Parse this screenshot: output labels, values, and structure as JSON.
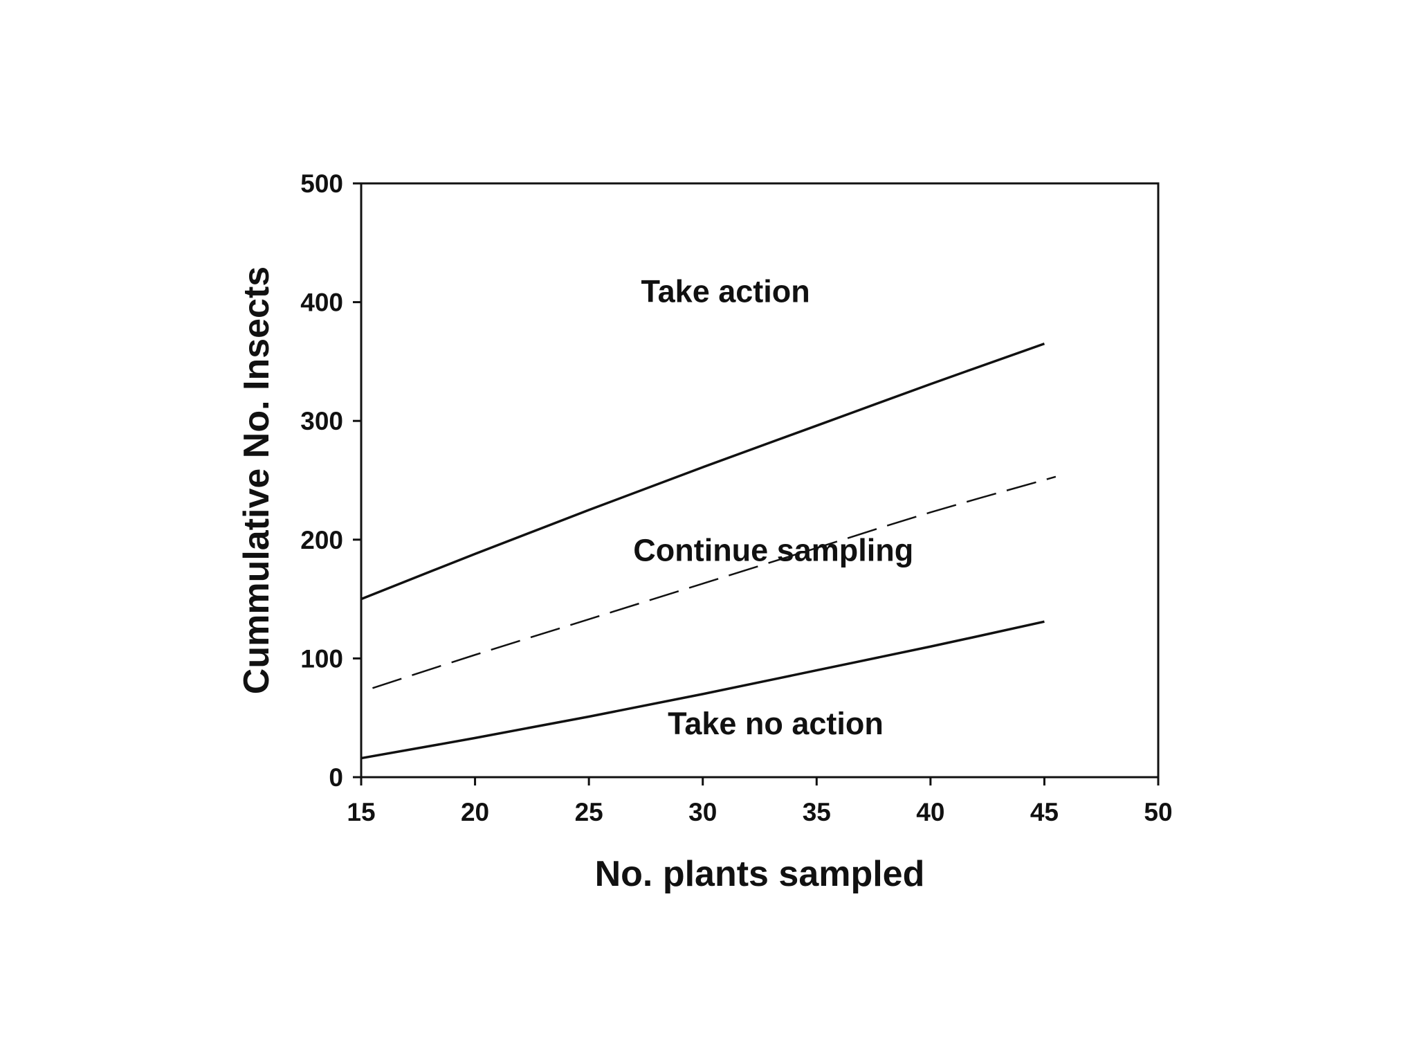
{
  "chart_data": {
    "type": "line",
    "title": "",
    "xlabel": "No. plants sampled",
    "ylabel": "Cummulative No. Insects",
    "xlim": [
      15,
      50
    ],
    "ylim": [
      0,
      500
    ],
    "xticks": [
      15,
      20,
      25,
      30,
      35,
      40,
      45,
      50
    ],
    "yticks": [
      0,
      100,
      200,
      300,
      400,
      500
    ],
    "grid": false,
    "legend": "none",
    "series": [
      {
        "style": "solid",
        "color": "#111111",
        "x": [
          15,
          20,
          25,
          30,
          35,
          40,
          45
        ],
        "y": [
          150,
          188,
          225,
          261,
          296,
          331,
          365
        ]
      },
      {
        "style": "dashed",
        "color": "#111111",
        "x": [
          15.5,
          20,
          25,
          30,
          35,
          40,
          45.5
        ],
        "y": [
          75,
          103,
          133,
          163,
          193,
          223,
          253
        ]
      },
      {
        "style": "solid",
        "color": "#111111",
        "x": [
          15,
          20,
          25,
          30,
          35,
          40,
          45
        ],
        "y": [
          16,
          33,
          51,
          70,
          90,
          110,
          131
        ]
      }
    ],
    "annotations": [
      {
        "text": "Take action",
        "x": 31,
        "y": 400
      },
      {
        "text": "Continue sampling",
        "x": 33.1,
        "y": 182
      },
      {
        "text": "Take no action",
        "x": 33.2,
        "y": 36
      }
    ]
  }
}
